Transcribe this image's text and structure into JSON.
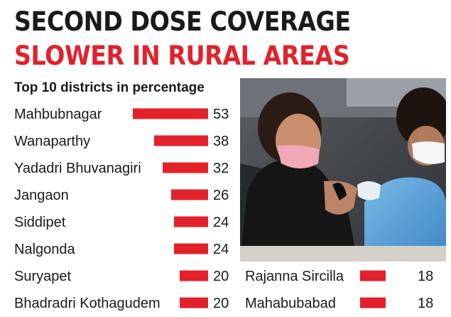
{
  "headline": {
    "line1": "SECOND DOSE COVERAGE",
    "line2": "SLOWER IN RURAL AREAS",
    "line2_color": "#e3212b"
  },
  "photo": {
    "description_icon": "vaccination-photo"
  },
  "chart_data": {
    "type": "bar",
    "orientation": "horizontal",
    "title": "Top 10 districts in percentage",
    "bar_color": "#e3212b",
    "categories": [
      "Mahbubnagar",
      "Wanaparthy",
      "Yadadri Bhuvanagiri",
      "Jangaon",
      "Siddipet",
      "Nalgonda",
      "Suryapet",
      "Bhadradri Kothagudem",
      "Rajanna Sircilla",
      "Mahabubabad"
    ],
    "values": [
      53,
      38,
      32,
      26,
      24,
      24,
      20,
      20,
      18,
      18
    ],
    "data_labels": [
      "53",
      "38",
      "32",
      "26",
      "24",
      "24",
      "20",
      "20",
      "18",
      "18"
    ],
    "grid": false,
    "legend": "none"
  }
}
